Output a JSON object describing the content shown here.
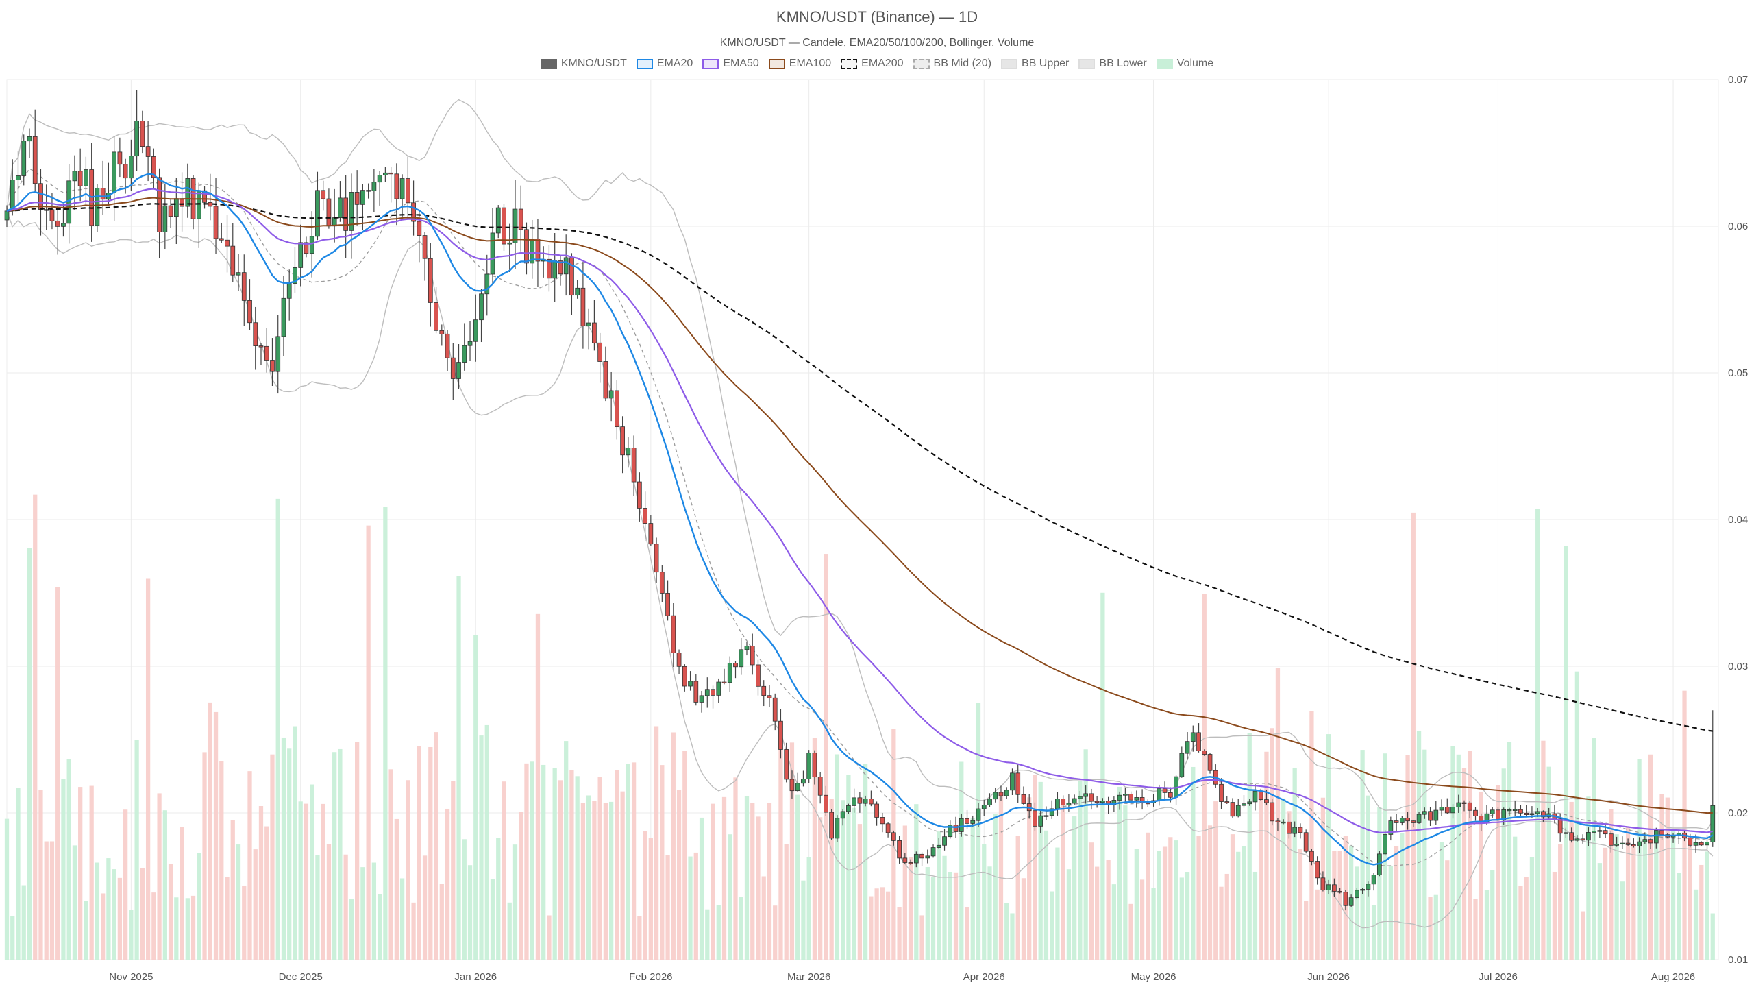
{
  "chart_data": {
    "type": "candlestick",
    "title": "KMNO/USDT (Binance) — 1D",
    "subtitle": "KMNO/USDT — Candele, EMA20/50/100/200, Bollinger, Volume",
    "legend_placement": "top-center",
    "grid": true,
    "legend": [
      {
        "name": "KMNO/USDT",
        "color": "#666666",
        "fill": "#666666",
        "style": "solid"
      },
      {
        "name": "EMA20",
        "color": "#1e88e5",
        "fill": "#e3f0fc",
        "style": "solid"
      },
      {
        "name": "EMA50",
        "color": "#8e5ce8",
        "fill": "#eee6fb",
        "style": "solid"
      },
      {
        "name": "EMA100",
        "color": "#8b4a1c",
        "fill": "#f2e8e0",
        "style": "solid"
      },
      {
        "name": "EMA200",
        "color": "#111111",
        "fill": "#f5f5f5",
        "style": "dashed"
      },
      {
        "name": "BB Mid (20)",
        "color": "#aaaaaa",
        "fill": "#eeeeee",
        "style": "dashed"
      },
      {
        "name": "BB Upper",
        "color": "#dddddd",
        "fill": "#e6e6e6",
        "style": "solid"
      },
      {
        "name": "BB Lower",
        "color": "#dddddd",
        "fill": "#e6e6e6",
        "style": "solid"
      },
      {
        "name": "Volume",
        "color": "#c8efd8",
        "fill": "#c8efd8",
        "style": "solid"
      }
    ],
    "x_axis": {
      "range": [
        "2025-10-10",
        "2026-08-09"
      ],
      "tick_labels": [
        "Nov 2025",
        "Dec 2025",
        "Jan 2026",
        "Feb 2026",
        "Mar 2026",
        "Apr 2026",
        "May 2026",
        "Jun 2026",
        "Jul 2026",
        "Aug 2026"
      ],
      "tick_dates": [
        "2025-11-01",
        "2025-12-01",
        "2026-01-01",
        "2026-02-01",
        "2026-03-01",
        "2026-04-01",
        "2026-05-01",
        "2026-06-01",
        "2026-07-01",
        "2026-08-01"
      ]
    },
    "y_axis": {
      "position": "right",
      "range": [
        0.01,
        0.07
      ],
      "tick_labels": [
        "0.01",
        "0.02",
        "0.03",
        "0.04",
        "0.05",
        "0.06",
        "0.07"
      ]
    },
    "colors": {
      "up": "#3a9a5e",
      "down": "#d9534f",
      "volume_up": "#c8efd8",
      "volume_down": "#f8cfcb"
    },
    "anchors": [
      [
        "2025-10-10",
        0.0605
      ],
      [
        "2025-10-13",
        0.0655
      ],
      [
        "2025-10-16",
        0.0625
      ],
      [
        "2025-10-19",
        0.06
      ],
      [
        "2025-10-22",
        0.064
      ],
      [
        "2025-10-25",
        0.0615
      ],
      [
        "2025-10-29",
        0.0635
      ],
      [
        "2025-11-02",
        0.066
      ],
      [
        "2025-11-06",
        0.0605
      ],
      [
        "2025-11-10",
        0.062
      ],
      [
        "2025-11-14",
        0.0615
      ],
      [
        "2025-11-18",
        0.059
      ],
      [
        "2025-11-22",
        0.0535
      ],
      [
        "2025-11-26",
        0.051
      ],
      [
        "2025-11-30",
        0.057
      ],
      [
        "2025-12-04",
        0.062
      ],
      [
        "2025-12-08",
        0.0605
      ],
      [
        "2025-12-12",
        0.0625
      ],
      [
        "2025-12-16",
        0.063
      ],
      [
        "2025-12-20",
        0.0615
      ],
      [
        "2025-12-24",
        0.055
      ],
      [
        "2025-12-28",
        0.0505
      ],
      [
        "2026-01-01",
        0.0525
      ],
      [
        "2026-01-04",
        0.06
      ],
      [
        "2026-01-08",
        0.06
      ],
      [
        "2026-01-12",
        0.0575
      ],
      [
        "2026-01-16",
        0.0575
      ],
      [
        "2026-01-19",
        0.055
      ],
      [
        "2026-01-22",
        0.0515
      ],
      [
        "2026-01-26",
        0.0465
      ],
      [
        "2026-01-30",
        0.0415
      ],
      [
        "2026-02-03",
        0.035
      ],
      [
        "2026-02-06",
        0.03
      ],
      [
        "2026-02-09",
        0.0275
      ],
      [
        "2026-02-14",
        0.029
      ],
      [
        "2026-02-18",
        0.031
      ],
      [
        "2026-02-22",
        0.0275
      ],
      [
        "2026-02-26",
        0.021
      ],
      [
        "2026-03-01",
        0.0235
      ],
      [
        "2026-03-05",
        0.0185
      ],
      [
        "2026-03-09",
        0.0215
      ],
      [
        "2026-03-13",
        0.02
      ],
      [
        "2026-03-17",
        0.017
      ],
      [
        "2026-03-21",
        0.017
      ],
      [
        "2026-03-25",
        0.0185
      ],
      [
        "2026-03-29",
        0.0195
      ],
      [
        "2026-04-02",
        0.0205
      ],
      [
        "2026-04-06",
        0.0225
      ],
      [
        "2026-04-10",
        0.0195
      ],
      [
        "2026-04-14",
        0.0205
      ],
      [
        "2026-04-18",
        0.021
      ],
      [
        "2026-04-22",
        0.0205
      ],
      [
        "2026-04-26",
        0.021
      ],
      [
        "2026-04-30",
        0.021
      ],
      [
        "2026-05-04",
        0.0215
      ],
      [
        "2026-05-08",
        0.0255
      ],
      [
        "2026-05-11",
        0.0225
      ],
      [
        "2026-05-15",
        0.02
      ],
      [
        "2026-05-19",
        0.021
      ],
      [
        "2026-05-23",
        0.0195
      ],
      [
        "2026-05-27",
        0.0185
      ],
      [
        "2026-05-31",
        0.015
      ],
      [
        "2026-06-04",
        0.014
      ],
      [
        "2026-06-08",
        0.015
      ],
      [
        "2026-06-12",
        0.0195
      ],
      [
        "2026-06-16",
        0.0195
      ],
      [
        "2026-06-20",
        0.02
      ],
      [
        "2026-06-24",
        0.0205
      ],
      [
        "2026-06-28",
        0.0195
      ],
      [
        "2026-07-02",
        0.02
      ],
      [
        "2026-07-06",
        0.02
      ],
      [
        "2026-07-10",
        0.0195
      ],
      [
        "2026-07-14",
        0.0185
      ],
      [
        "2026-07-18",
        0.0185
      ],
      [
        "2026-07-22",
        0.018
      ],
      [
        "2026-07-26",
        0.018
      ],
      [
        "2026-07-30",
        0.0185
      ],
      [
        "2026-08-04",
        0.018
      ],
      [
        "2026-08-07",
        0.018
      ],
      [
        "2026-08-08",
        0.0205
      ]
    ]
  }
}
